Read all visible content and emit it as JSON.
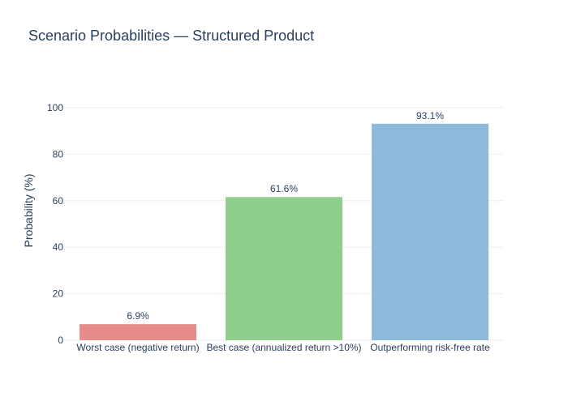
{
  "chart_data": {
    "type": "bar",
    "title": "Scenario Probabilities — Structured Product",
    "xlabel": "",
    "ylabel": "Probability (%)",
    "categories": [
      "Worst case (negative return)",
      "Best case (annualized return >10%)",
      "Outperforming risk-free rate"
    ],
    "values": [
      6.9,
      61.6,
      93.1
    ],
    "data_labels": [
      "6.9%",
      "61.6%",
      "93.1%"
    ],
    "colors": [
      "#e88b8b",
      "#8fce8c",
      "#8db9da"
    ],
    "ylim": [
      0,
      100
    ],
    "yticks": [
      0,
      20,
      40,
      60,
      80,
      100
    ],
    "grid": true,
    "legend": "none"
  }
}
